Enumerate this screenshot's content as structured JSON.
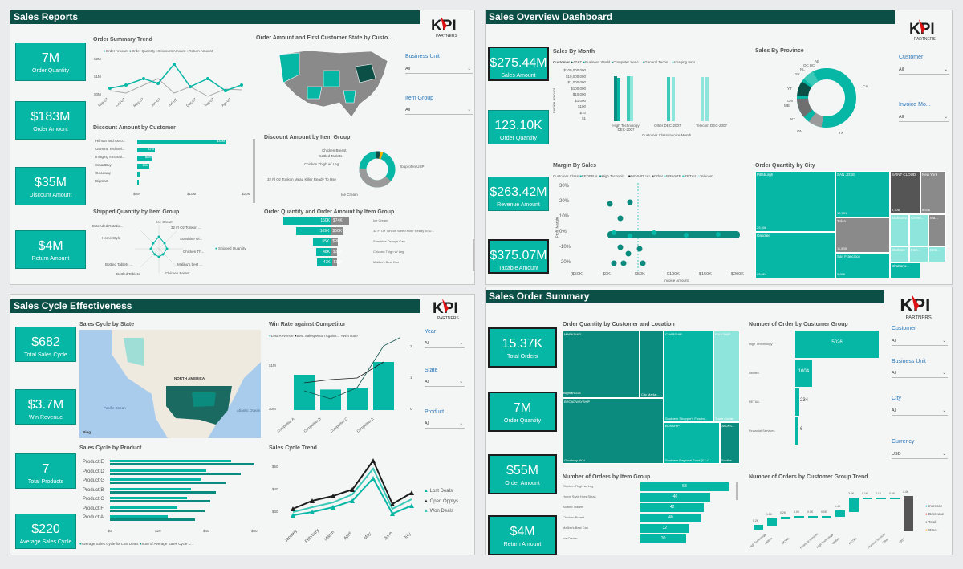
{
  "p1": {
    "title": "Sales Reports",
    "kpis": [
      {
        "v": "7M",
        "l": "Order Quantity"
      },
      {
        "v": "$183M",
        "l": "Order Amount"
      },
      {
        "v": "$35M",
        "l": "Discount Amount"
      },
      {
        "v": "$4M",
        "l": "Return Amount"
      }
    ],
    "trend_title": "Order Summary Trend",
    "trend_legend": [
      "Order Amount",
      "Order Quantity",
      "Discount Amount",
      "Return Amount"
    ],
    "trend_y": [
      "$2M",
      "$1M",
      "$0M"
    ],
    "trend_x": [
      "Sep-07",
      "Oct-07",
      "May-07",
      "Jun-07",
      "Jul-07",
      "Dec-07",
      "Aug-07",
      "Apr-07"
    ],
    "map_title": "Order Amount and First Customer State by Custo...",
    "slicers": [
      {
        "t": "Business Unit",
        "v": "All"
      },
      {
        "t": "Item Group",
        "v": "All"
      }
    ],
    "disc_cust_title": "Discount Amount by Customer",
    "disc_cust": [
      {
        "n": "Hilman and Asso...",
        "v": "$34M",
        "f": 1.0
      },
      {
        "n": "General Technol...",
        "v": "$7M",
        "f": 0.2
      },
      {
        "n": "Imaging Innovati...",
        "v": "$6M",
        "f": 0.17
      },
      {
        "n": "SmartBuy",
        "v": "$5M",
        "f": 0.14
      },
      {
        "n": "Goodway",
        "v": "",
        "f": 0.03
      },
      {
        "n": "Bigmart",
        "v": "",
        "f": 0.02
      }
    ],
    "disc_cust_x": [
      "$0M",
      "$10M",
      "$20M"
    ],
    "disc_item_title": "Discount Amount by Item  Group",
    "donut_labels": [
      "Chicken Breast",
      "Bottled Tablets",
      "Chicken Thigh w/ Leg",
      "32 Fl Oz Tonkon Mead Killer Ready To Use",
      "Ibuprofen USP",
      "Ice Cream"
    ],
    "shipped_title": "Shipped Quantity by Item Group",
    "radar_labels": [
      "Ice Cream",
      "32 Fl Oz Tonkon ...",
      "Sunshine Ol...",
      "Chicken Th...",
      "Malibu's best ...",
      "Chicken Breast",
      "Bottled Tablets",
      "Bottled Tablets ...",
      "Extended Rotatio...",
      "Home Style"
    ],
    "radar_legend": "Shipped Quantity",
    "oq_title": "Order Quantity and Order Amount by Item Group",
    "oq": [
      {
        "a": "150K",
        "b": "$74K",
        "w": 1.0,
        "x": 0
      },
      {
        "a": "109K",
        "b": "$60K",
        "w": 0.73,
        "x": 0.13
      },
      {
        "a": "55K",
        "b": "$9K",
        "w": 0.37,
        "x": 0.31
      },
      {
        "a": "48K",
        "b": "$30K",
        "w": 0.32,
        "x": 0.34
      },
      {
        "a": "47K",
        "b": "$10K",
        "w": 0.31,
        "x": 0.35
      }
    ],
    "oq_labels": [
      "Ice Cream",
      "32 Fl Oz Tonkon Weed Killer Ready To U...",
      "Sunshine Orange Can",
      "Chicken Thigh w/ Leg",
      "Malibu's Best Can"
    ]
  },
  "p2": {
    "title": "Sales Overview Dashboard",
    "kpis": [
      {
        "v": "$275.44M",
        "l": "Sales Amount"
      },
      {
        "v": "123.10K",
        "l": "Order Quantity"
      },
      {
        "v": "$263.42M",
        "l": "Revenue Amount"
      },
      {
        "v": "$375.07M",
        "l": "Taxable Amount"
      }
    ],
    "sbm_title": "Sales By Month",
    "sbm_legend": [
      "Customer",
      "AT&T",
      "Business World",
      "Computer Servi...",
      "General Techn...",
      "Imaging Inno..."
    ],
    "sbm_y": [
      "$100,000,000",
      "$10,000,000",
      "$1,000,000",
      "$100,000",
      "$10,000",
      "$1,000",
      "$100",
      "$10",
      "$1"
    ],
    "sbm_ylabel": "Invoice Amount",
    "sbm_x": [
      "High Technology DEC-2007",
      "Other DEC-2007",
      "Telecom DEC-2007"
    ],
    "sbm_xlabel": "Customer Class Invoice Month",
    "prov_title": "Sales By Province",
    "prov_labels": [
      "AB",
      "BC",
      "SK",
      "NL",
      "QC",
      "YT",
      "ON",
      "MB",
      "NT",
      "ON",
      "CA",
      "TX"
    ],
    "slicers": [
      {
        "t": "Customer",
        "v": "All"
      },
      {
        "t": "Invoice Mo...",
        "v": "All"
      }
    ],
    "margin_title": "Margin By Sales",
    "margin_legend": [
      "Customer Class",
      "FEDERAL",
      "High Technolo...",
      "INDIVIDUAL",
      "Other",
      "PRIVATE",
      "RETAIL",
      "Telecom"
    ],
    "margin_y": [
      "30%",
      "20%",
      "10%",
      "0%",
      "-10%",
      "-20%"
    ],
    "margin_x": [
      "($50K)",
      "$0K",
      "$50K",
      "$100K",
      "$150K",
      "$200K"
    ],
    "margin_xlabel": "Invoice Amount",
    "margin_ylabel": "Profit Margin",
    "city_title": "Order Quantity by City",
    "cities": [
      {
        "n": "Pittsburgh",
        "v": "29,306"
      },
      {
        "n": "SAN JOSE",
        "v": "10,791"
      },
      {
        "n": "SAINT CLOUD",
        "v": "9,306"
      },
      {
        "n": "New York",
        "v": "8,536"
      },
      {
        "n": "Oakdale",
        "v": "23,524"
      },
      {
        "n": "Tulsa",
        "v": "11,835"
      },
      {
        "n": "San Francisco",
        "v": "9,838"
      },
      {
        "n": "Jacksonv...",
        "v": ""
      },
      {
        "n": "Clevel...",
        "v": ""
      },
      {
        "n": "Ma...",
        "v": ""
      },
      {
        "n": "Clarkton",
        "v": ""
      },
      {
        "n": "Fort...",
        "v": ""
      },
      {
        "n": "Bett...",
        "v": ""
      },
      {
        "n": "Chattano...",
        "v": ""
      }
    ]
  },
  "p3": {
    "title": "Sales Cycle Effectiveness",
    "kpis": [
      {
        "v": "$682",
        "l": "Total Sales Cycle"
      },
      {
        "v": "$3.7M",
        "l": "Win Revenue"
      },
      {
        "v": "7",
        "l": "Total Products"
      },
      {
        "v": "$220",
        "l": "Average Sales Cycle"
      }
    ],
    "state_title": "Sales Cycle by State",
    "map_label": "NORTH AMERICA",
    "ocean1": "Pacific Ocean",
    "ocean2": "Atlantic Ocean",
    "bing": "Bing",
    "win_title": "Win Rate against Competitor",
    "win_legend": [
      "Lost Revenue",
      "Best Salesperson Agains...",
      "Win Rate"
    ],
    "win_y": [
      "$1M",
      "$0M"
    ],
    "win_y2": [
      "2",
      "1",
      "0"
    ],
    "competitors": [
      "Competitor A",
      "Competitor B",
      "Competitor C",
      "Competitor E"
    ],
    "win_vals": [
      0.55,
      0.32,
      0.35,
      0.75
    ],
    "slicers": [
      {
        "t": "Year",
        "v": "All"
      },
      {
        "t": "State",
        "v": "All"
      },
      {
        "t": "Product",
        "v": "All"
      }
    ],
    "prod_title": "Sales Cycle by Product",
    "products": [
      {
        "n": "Product E",
        "a": 0.63,
        "b": 0.75
      },
      {
        "n": "Product D",
        "a": 0.5,
        "b": 0.68
      },
      {
        "n": "Product G",
        "a": 0.47,
        "b": 0.6
      },
      {
        "n": "Product B",
        "a": 0.42,
        "b": 0.55
      },
      {
        "n": "Product C",
        "a": 0.4,
        "b": 0.52
      },
      {
        "n": "Product F",
        "a": 0.35,
        "b": 0.49
      },
      {
        "n": "Product A",
        "a": 0.3,
        "b": 0.44
      }
    ],
    "prod_x": [
      "$0",
      "$20",
      "$40",
      "$60"
    ],
    "prod_legend": [
      "Average Sales Cycle for Lost Deals",
      "Sum of Average Sales Cycle L..."
    ],
    "trend_title": "Sales Cycle Trend",
    "trend_y": [
      "$50",
      "$40",
      "$30"
    ],
    "trend_x": [
      "January",
      "February",
      "March",
      "April",
      "May",
      "June",
      "July"
    ],
    "trend_legend": [
      "Lost Deals",
      "Open Opptys",
      "Won Deals"
    ]
  },
  "p4": {
    "title": "Sales Order Summary",
    "kpis": [
      {
        "v": "15.37K",
        "l": "Total Orders"
      },
      {
        "v": "7M",
        "l": "Order Quantity"
      },
      {
        "v": "$55M",
        "l": "Order Amount"
      },
      {
        "v": "$4M",
        "l": "Return Amount"
      }
    ],
    "loc_title": "Order Quantity by Customer and Location",
    "loc_cells": [
      {
        "n": "MARKSHIP",
        "v": "Bigmart 11B"
      },
      {
        "n": "",
        "v": "City Marke..."
      },
      {
        "n": "CHARSHIP",
        "v": "Southern Shopper's Foodm..."
      },
      {
        "n": "FULLSHIP",
        "v": "Trade Center"
      },
      {
        "n": "BROADWAYSHIP",
        "v": "Goodway 1KN"
      },
      {
        "n": "BOSSHIP",
        "v": "Southern Regional Food (C1-C..."
      },
      {
        "n": "JACKS...",
        "v": "Southe..."
      }
    ],
    "grp_title": "Number of Order by Customer Group",
    "groups": [
      {
        "n": "High Technology",
        "v": "5026",
        "f": 1.0
      },
      {
        "n": "Utilities",
        "v": "1004",
        "f": 0.2
      },
      {
        "n": "RETAIL",
        "v": "234",
        "f": 0.05
      },
      {
        "n": "Financial Services",
        "v": "6",
        "f": 0.002
      }
    ],
    "slicers": [
      {
        "t": "Customer",
        "v": "All"
      },
      {
        "t": "Business Unit",
        "v": "All"
      },
      {
        "t": "City",
        "v": "All"
      },
      {
        "t": "Currency",
        "v": "USD"
      }
    ],
    "item_title": "Number of Orders by Item Group",
    "items": [
      {
        "n": "Chicken Thigh w/ Leg",
        "v": "58",
        "f": 1.0
      },
      {
        "n": "Home Style Hors Steak",
        "v": "46",
        "f": 0.79
      },
      {
        "n": "Bottled Tablets",
        "v": "42",
        "f": 0.72
      },
      {
        "n": "Chicken Breast",
        "v": "40",
        "f": 0.69
      },
      {
        "n": "Malibu's Best Can",
        "v": "32",
        "f": 0.55
      },
      {
        "n": "Ice Cream",
        "v": "30",
        "f": 0.52
      }
    ],
    "wf_title": "Number of Orders by Customer Group Trend",
    "wf_legend": [
      "Increase",
      "Decrease",
      "Total",
      "Other"
    ],
    "wf_labels": [
      "0.2K",
      "1.1K",
      "0.2K",
      "0.0K",
      "0.0K",
      "0.0K",
      "1.4K",
      "3.5K",
      "0.1K",
      "0.1K",
      "0.0K",
      "4.4K"
    ],
    "wf_x": [
      "High Technology",
      "Utilities",
      "RETAIL",
      "Financial Services",
      "High Technology",
      "Utilities",
      "RETAIL",
      "Financial Services",
      "Other",
      "2007"
    ]
  },
  "colors": {
    "teal": "#06b7a5",
    "dark": "#0b4f47",
    "light": "#8ee5dc",
    "title": "#0b4f47"
  }
}
